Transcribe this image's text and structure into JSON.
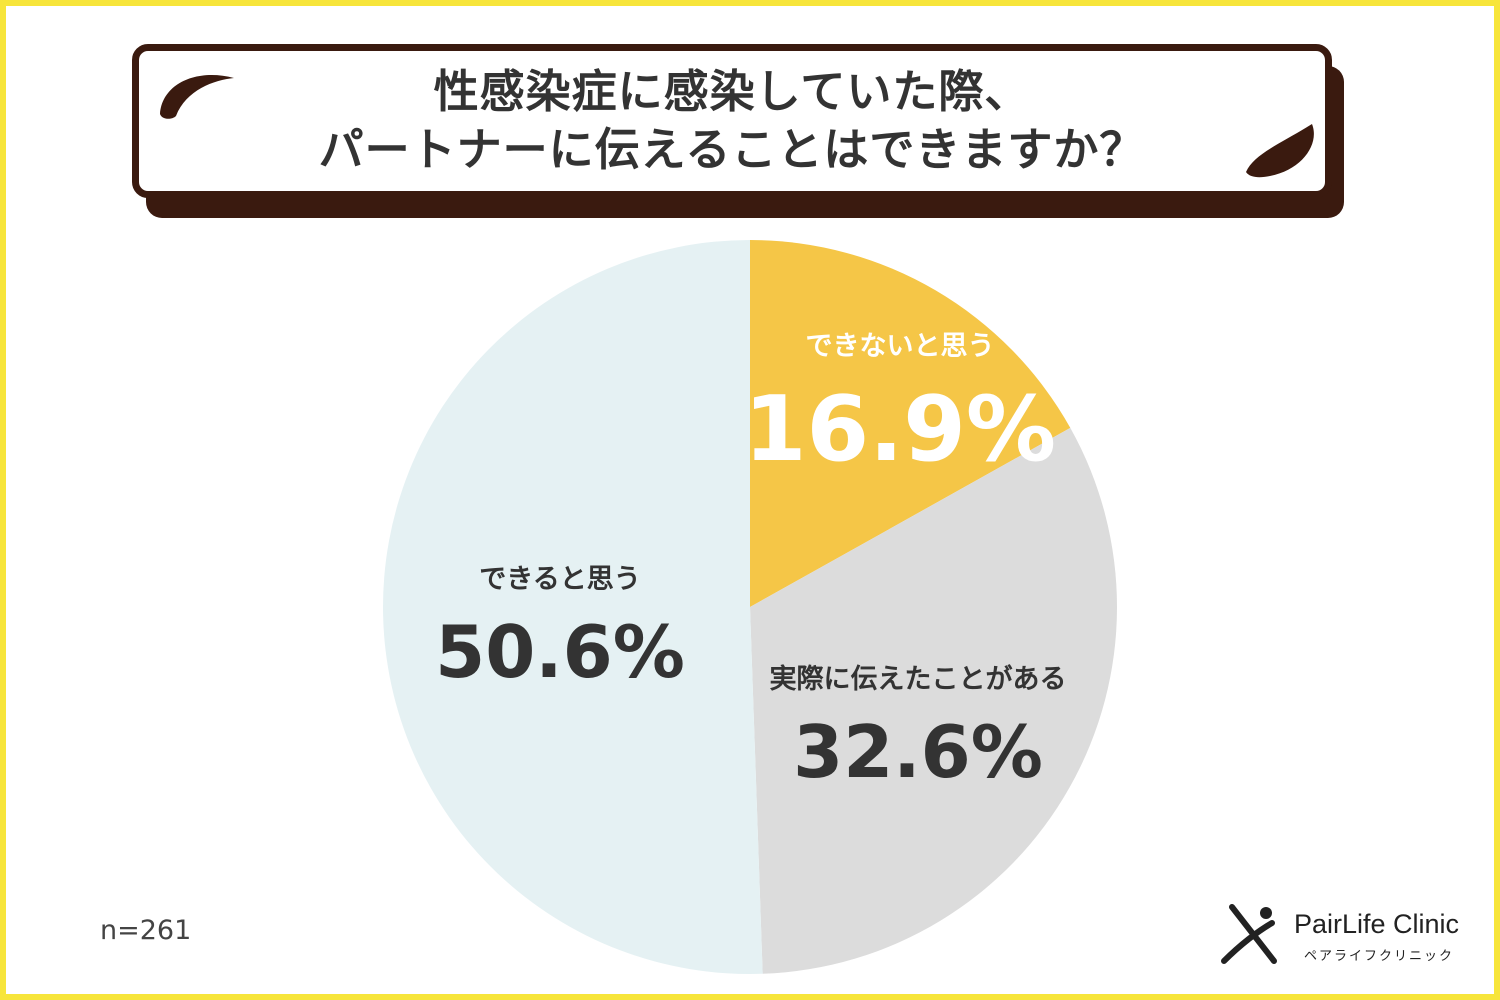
{
  "title": {
    "line1": "性感染症に感染していた際、",
    "line2": "パートナーに伝えることはできますか？"
  },
  "chart_data": {
    "type": "pie",
    "title": "性感染症に感染していた際、パートナーに伝えることはできますか？",
    "slices": [
      {
        "label": "できないと思う",
        "value": 16.9,
        "display": "16.9%",
        "color": "#f5c647",
        "label_color": "#ffffff"
      },
      {
        "label": "実際に伝えたことがある",
        "value": 32.6,
        "display": "32.6%",
        "color": "#dcdcdc",
        "label_color": "#333333"
      },
      {
        "label": "できると思う",
        "value": 50.6,
        "display": "50.6%",
        "color": "#e5f1f3",
        "label_color": "#333333"
      }
    ],
    "start_angle": "12 o'clock",
    "direction": "clockwise"
  },
  "sample_size": "n=261",
  "brand": {
    "name": "PairLife Clinic",
    "name_kana": "ペアライフクリニック",
    "icon": "person-x-icon"
  },
  "colors": {
    "frame": "#f7e53b",
    "title_border": "#3a1a0f",
    "text": "#333333"
  }
}
